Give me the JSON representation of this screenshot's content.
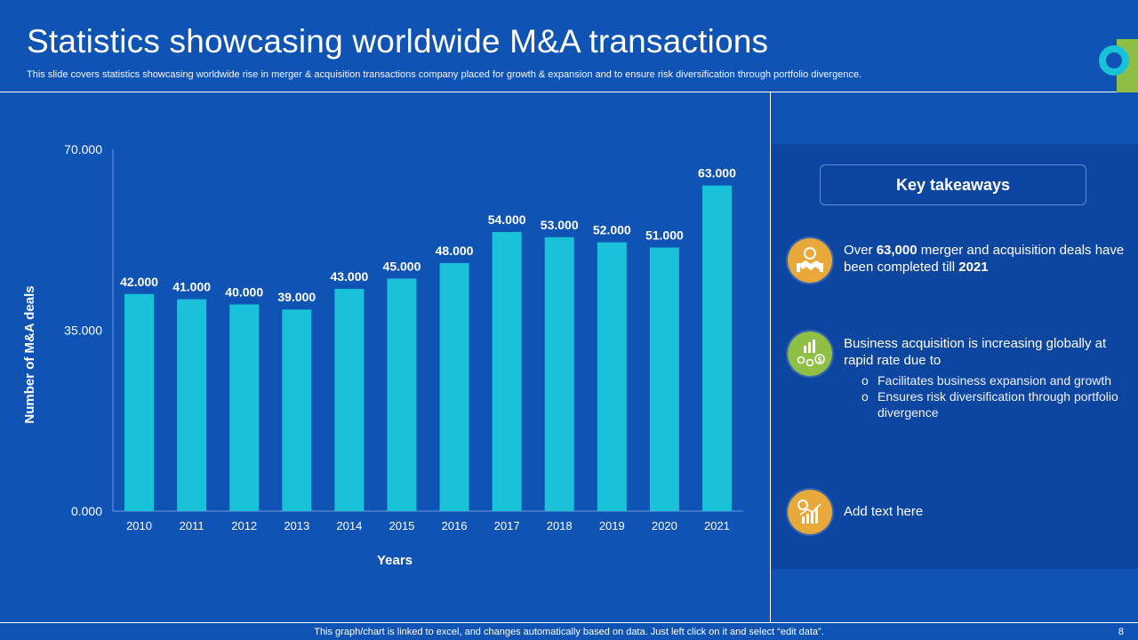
{
  "header": {
    "title": "Statistics showcasing worldwide M&A transactions",
    "subtitle": "This slide covers statistics showcasing worldwide rise in merger & acquisition transactions company placed for growth & expansion and to ensure risk diversification through portfolio divergence."
  },
  "chart_data": {
    "type": "bar",
    "categories": [
      "2010",
      "2011",
      "2012",
      "2013",
      "2014",
      "2015",
      "2016",
      "2017",
      "2018",
      "2019",
      "2020",
      "2021"
    ],
    "values": [
      42000,
      41000,
      40000,
      39000,
      43000,
      45000,
      48000,
      54000,
      53000,
      52000,
      51000,
      63000
    ],
    "value_labels": [
      "42.000",
      "41.000",
      "40.000",
      "39.000",
      "43.000",
      "45.000",
      "48.000",
      "54.000",
      "53.000",
      "52.000",
      "51.000",
      "63.000"
    ],
    "y_ticks": [
      0,
      35000,
      70000
    ],
    "y_tick_labels": [
      "0.000",
      "35.000",
      "70.000"
    ],
    "ylim": [
      0,
      70000
    ],
    "xlabel": "Years",
    "ylabel": "Number of M&A deals",
    "bar_color": "#19c1d9",
    "grid": false
  },
  "panel": {
    "heading": "Key takeaways",
    "item1": {
      "pre": "Over ",
      "bold1": "63,000",
      "mid": " merger and acquisition deals have been completed till ",
      "bold2": "2021",
      "icon": "handshake-gear-icon",
      "color": "#e9a93a"
    },
    "item2": {
      "text": "Business acquisition is  increasing globally at rapid rate due to",
      "bullet": "o",
      "subitems": [
        "Facilitates business expansion and growth",
        "Ensures risk diversification through portfolio divergence"
      ],
      "icon": "growth-people-dollar-icon",
      "color": "#8fbf45"
    },
    "item3": {
      "text": "Add text here",
      "icon": "chart-gear-icon",
      "color": "#e9a93a"
    }
  },
  "footer": {
    "note": "This graph/chart is linked to excel, and changes automatically based on data. Just left click on it and select “edit data”.",
    "page": "8"
  },
  "colors": {
    "background": "#0f54b4",
    "panel": "#0d46a0",
    "accent_cyan": "#19c1d9",
    "accent_green": "#8fbf45"
  }
}
